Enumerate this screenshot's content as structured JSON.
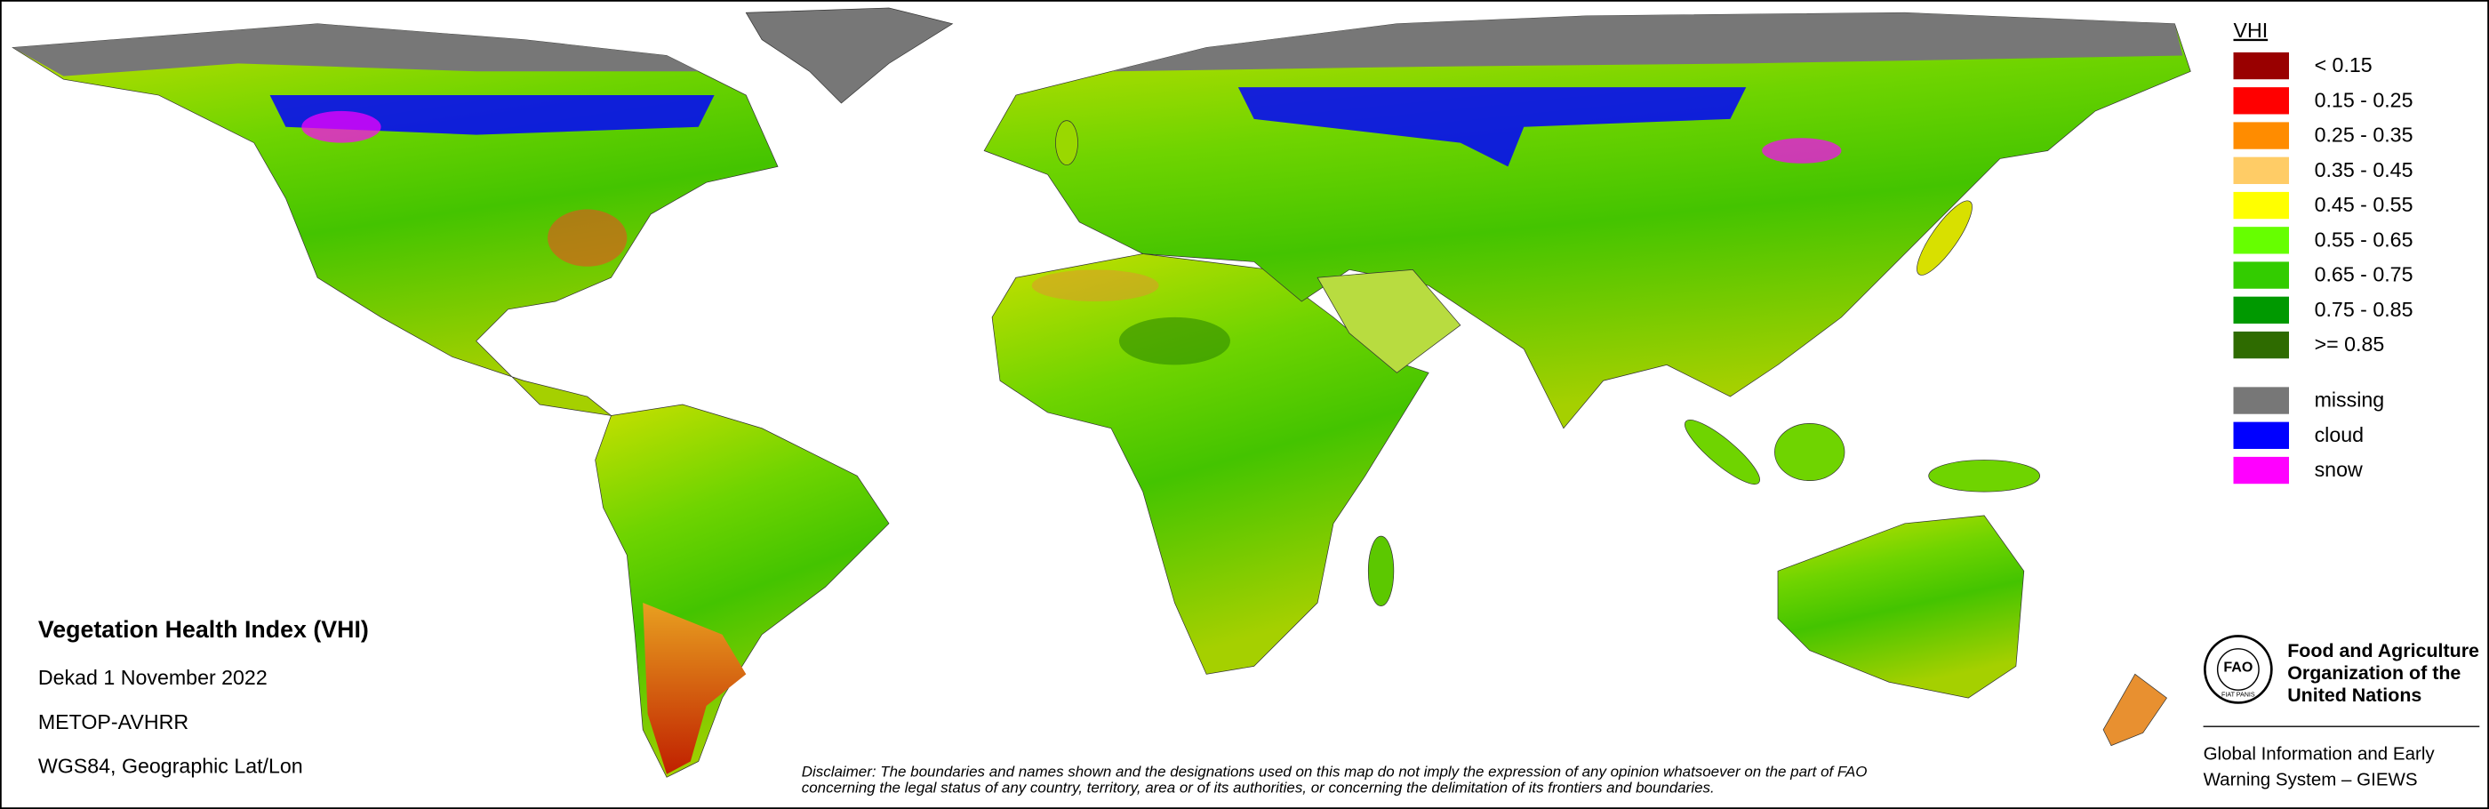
{
  "legend": {
    "title": "VHI",
    "items": [
      {
        "label": "< 0.15",
        "color": "#990000"
      },
      {
        "label": "0.15 - 0.25",
        "color": "#ff0000"
      },
      {
        "label": "0.25 - 0.35",
        "color": "#ff8c00"
      },
      {
        "label": "0.35 - 0.45",
        "color": "#ffcc66"
      },
      {
        "label": "0.45 - 0.55",
        "color": "#ffff00"
      },
      {
        "label": "0.55 - 0.65",
        "color": "#66ff00"
      },
      {
        "label": "0.65 - 0.75",
        "color": "#33cc00"
      },
      {
        "label": "0.75 - 0.85",
        "color": "#009900"
      },
      {
        "label": ">= 0.85",
        "color": "#2e6b00"
      }
    ],
    "masks": [
      {
        "label": "missing",
        "color": "#777777"
      },
      {
        "label": "cloud",
        "color": "#0000ff"
      },
      {
        "label": "snow",
        "color": "#ff00ff"
      }
    ]
  },
  "info": {
    "title": "Vegetation Health Index (VHI)",
    "lines": [
      "Dekad 1 November 2022",
      "METOP-AVHRR",
      "WGS84, Geographic Lat/Lon"
    ]
  },
  "disclaimer": [
    "Disclaimer: The boundaries and names shown and the designations used on this map do not imply the expression of any opinion whatsoever on the part of FAO",
    "concerning the legal status of any country, territory, area or of its authorities, or concerning the delimitation of its frontiers and boundaries."
  ],
  "organization": {
    "logo_text": "FAO",
    "logo_motto": "FIAT PANIS",
    "name": [
      "Food and Agriculture",
      "Organization of the",
      "United Nations"
    ],
    "program": [
      "Global Information and Early",
      "Warning System – GIEWS"
    ]
  }
}
